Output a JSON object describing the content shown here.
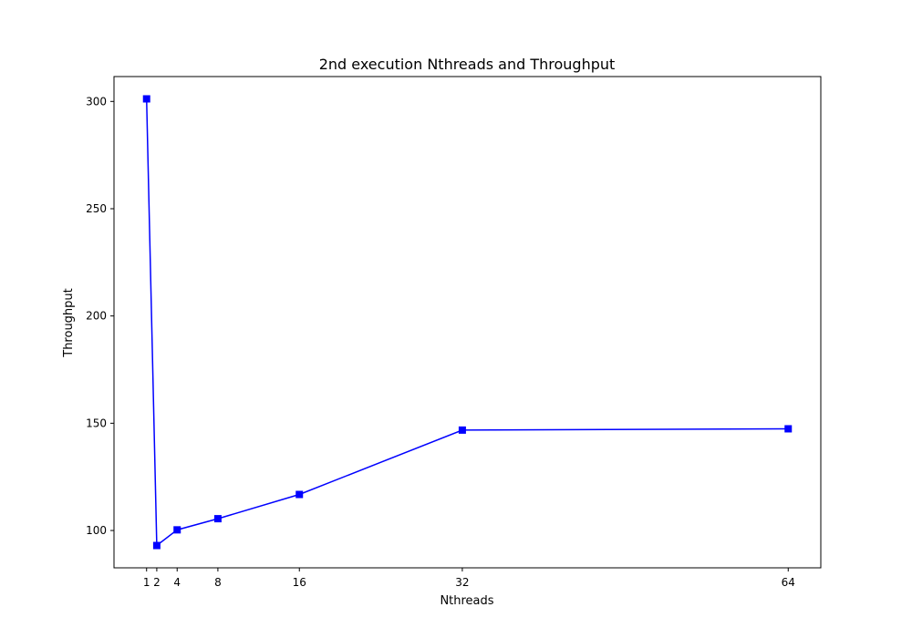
{
  "chart_data": {
    "type": "line",
    "title": "2nd execution Nthreads and Throughput",
    "xlabel": "Nthreads",
    "ylabel": "Throughput",
    "x": [
      1,
      2,
      4,
      8,
      16,
      32,
      64
    ],
    "series": [
      {
        "values": [
          301.2,
          93.0,
          100.3,
          105.5,
          116.8,
          146.8,
          147.4
        ],
        "color": "#0000ff",
        "marker": "square"
      }
    ],
    "xticks": [
      1,
      2,
      4,
      8,
      16,
      32,
      64
    ],
    "xtick_labels": [
      "1",
      "2",
      "4",
      "8",
      "16",
      "32",
      "64"
    ],
    "yticks": [
      100,
      150,
      200,
      250,
      300
    ],
    "ytick_labels": [
      "100",
      "150",
      "200",
      "250",
      "300"
    ],
    "xlim": [
      -2.2,
      67.2
    ],
    "ylim": [
      82.6,
      311.6
    ],
    "grid": false,
    "legend": "none"
  }
}
